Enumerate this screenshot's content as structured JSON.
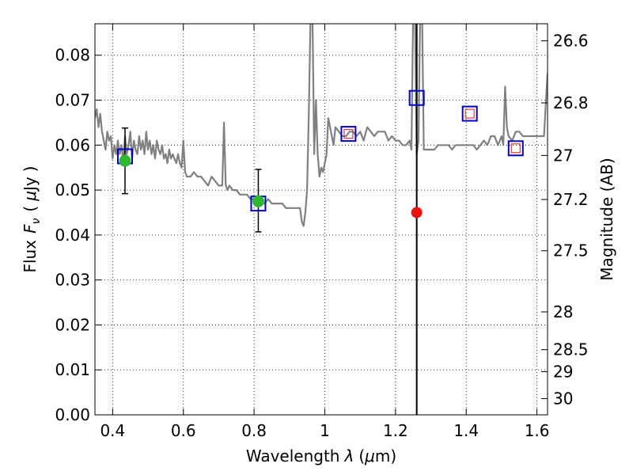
{
  "chart_data": {
    "type": "scatter",
    "xlabel": "Wavelength",
    "xlabel_symbol": "λ",
    "xlabel_unit_open": "(",
    "xlabel_unit_mu": "μ",
    "xlabel_unit_rest": "m)",
    "ylabel": "Flux",
    "ylabel_symbol": "F",
    "ylabel_subscript": "ν",
    "ylabel_unit_open": "(",
    "ylabel_unit_mu": "μ",
    "ylabel_unit_rest": "Jy",
    "ylabel_unit_close": ")",
    "y2label": "Magnitude (AB)",
    "xlim": [
      0.35,
      1.63
    ],
    "ylim": [
      0.0,
      0.087
    ],
    "grid": true,
    "xticks": [
      0.4,
      0.6,
      0.8,
      1.0,
      1.2,
      1.4,
      1.6
    ],
    "xtick_labels": [
      "0.4",
      "0.6",
      "0.8",
      "1",
      "1.2",
      "1.4",
      "1.6"
    ],
    "yticks": [
      0.0,
      0.01,
      0.02,
      0.03,
      0.04,
      0.05,
      0.06,
      0.07,
      0.08
    ],
    "ytick_labels": [
      "0.00",
      "0.01",
      "0.02",
      "0.03",
      "0.04",
      "0.05",
      "0.06",
      "0.07",
      "0.08"
    ],
    "y2ticks": [
      {
        "label": "26.6",
        "flux": 0.0832
      },
      {
        "label": "26.8",
        "flux": 0.0694
      },
      {
        "label": "27",
        "flux": 0.0577
      },
      {
        "label": "27.2",
        "flux": 0.0479
      },
      {
        "label": "27.5",
        "flux": 0.0365
      },
      {
        "label": "28",
        "flux": 0.0229
      },
      {
        "label": "28.5",
        "flux": 0.0145
      },
      {
        "label": "29",
        "flux": 0.0096
      },
      {
        "label": "30",
        "flux": 0.0036
      }
    ],
    "spectrum": {
      "color": "#808080",
      "x": [
        0.35,
        0.355,
        0.36,
        0.365,
        0.37,
        0.375,
        0.38,
        0.385,
        0.39,
        0.395,
        0.4,
        0.405,
        0.41,
        0.415,
        0.42,
        0.425,
        0.43,
        0.435,
        0.44,
        0.445,
        0.45,
        0.455,
        0.46,
        0.465,
        0.47,
        0.475,
        0.48,
        0.485,
        0.49,
        0.495,
        0.5,
        0.505,
        0.51,
        0.515,
        0.52,
        0.525,
        0.53,
        0.535,
        0.54,
        0.545,
        0.55,
        0.555,
        0.56,
        0.565,
        0.57,
        0.575,
        0.58,
        0.585,
        0.59,
        0.595,
        0.6,
        0.605,
        0.61,
        0.62,
        0.63,
        0.64,
        0.65,
        0.66,
        0.67,
        0.68,
        0.69,
        0.7,
        0.71,
        0.715,
        0.72,
        0.725,
        0.73,
        0.74,
        0.75,
        0.76,
        0.77,
        0.78,
        0.79,
        0.8,
        0.81,
        0.82,
        0.83,
        0.84,
        0.85,
        0.86,
        0.87,
        0.88,
        0.89,
        0.9,
        0.91,
        0.92,
        0.93,
        0.935,
        0.94,
        0.945,
        0.95,
        0.955,
        0.96,
        0.965,
        0.97,
        0.975,
        0.98,
        0.985,
        0.99,
        0.995,
        1.0,
        1.005,
        1.01,
        1.02,
        1.025,
        1.03,
        1.04,
        1.05,
        1.06,
        1.07,
        1.08,
        1.09,
        1.1,
        1.11,
        1.12,
        1.13,
        1.14,
        1.15,
        1.16,
        1.17,
        1.18,
        1.19,
        1.2,
        1.21,
        1.22,
        1.23,
        1.24,
        1.245,
        1.25,
        1.255,
        1.26,
        1.265,
        1.27,
        1.275,
        1.28,
        1.29,
        1.3,
        1.31,
        1.32,
        1.33,
        1.34,
        1.35,
        1.36,
        1.37,
        1.38,
        1.39,
        1.4,
        1.41,
        1.42,
        1.43,
        1.44,
        1.45,
        1.46,
        1.47,
        1.48,
        1.49,
        1.5,
        1.505,
        1.51,
        1.515,
        1.52,
        1.53,
        1.54,
        1.55,
        1.56,
        1.57,
        1.58,
        1.59,
        1.6,
        1.61,
        1.62,
        1.63
      ],
      "y": [
        0.066,
        0.068,
        0.064,
        0.067,
        0.063,
        0.061,
        0.059,
        0.063,
        0.061,
        0.062,
        0.057,
        0.06,
        0.058,
        0.061,
        0.058,
        0.06,
        0.056,
        0.062,
        0.058,
        0.06,
        0.063,
        0.057,
        0.061,
        0.059,
        0.058,
        0.062,
        0.059,
        0.061,
        0.058,
        0.063,
        0.059,
        0.061,
        0.058,
        0.06,
        0.057,
        0.061,
        0.059,
        0.058,
        0.06,
        0.057,
        0.058,
        0.056,
        0.059,
        0.057,
        0.058,
        0.057,
        0.056,
        0.058,
        0.056,
        0.055,
        0.061,
        0.054,
        0.053,
        0.053,
        0.054,
        0.053,
        0.053,
        0.052,
        0.051,
        0.053,
        0.052,
        0.051,
        0.051,
        0.065,
        0.051,
        0.05,
        0.051,
        0.05,
        0.05,
        0.049,
        0.049,
        0.049,
        0.048,
        0.048,
        0.048,
        0.047,
        0.047,
        0.048,
        0.047,
        0.047,
        0.047,
        0.047,
        0.046,
        0.046,
        0.046,
        0.046,
        0.046,
        0.043,
        0.042,
        0.045,
        0.05,
        0.068,
        0.09,
        0.09,
        0.058,
        0.07,
        0.058,
        0.053,
        0.055,
        0.054,
        0.056,
        0.058,
        0.066,
        0.062,
        0.06,
        0.064,
        0.063,
        0.062,
        0.062,
        0.063,
        0.063,
        0.062,
        0.063,
        0.061,
        0.064,
        0.063,
        0.062,
        0.063,
        0.063,
        0.063,
        0.061,
        0.062,
        0.061,
        0.061,
        0.06,
        0.06,
        0.061,
        0.059,
        0.09,
        0.09,
        0.058,
        0.061,
        0.09,
        0.09,
        0.059,
        0.059,
        0.059,
        0.059,
        0.06,
        0.06,
        0.06,
        0.06,
        0.059,
        0.06,
        0.06,
        0.06,
        0.06,
        0.06,
        0.06,
        0.059,
        0.06,
        0.061,
        0.06,
        0.062,
        0.062,
        0.06,
        0.062,
        0.06,
        0.073,
        0.064,
        0.062,
        0.061,
        0.063,
        0.063,
        0.062,
        0.062,
        0.062,
        0.062,
        0.062,
        0.062,
        0.062,
        0.076
      ]
    },
    "vline": {
      "x": 1.26,
      "color": "#000000"
    },
    "green_points": [
      {
        "x": 0.435,
        "y": 0.0565,
        "err_low": 0.0492,
        "err_high": 0.0638
      },
      {
        "x": 0.812,
        "y": 0.0475,
        "err_low": 0.0407,
        "err_high": 0.0546
      }
    ],
    "blue_squares": [
      {
        "x": 0.435,
        "y": 0.0575
      },
      {
        "x": 0.812,
        "y": 0.047
      },
      {
        "x": 1.067,
        "y": 0.0625
      },
      {
        "x": 1.26,
        "y": 0.0705
      },
      {
        "x": 1.41,
        "y": 0.067
      },
      {
        "x": 1.54,
        "y": 0.0593
      }
    ],
    "red_squares": [
      {
        "x": 1.067,
        "y": 0.0625
      },
      {
        "x": 1.41,
        "y": 0.067
      },
      {
        "x": 1.54,
        "y": 0.0593
      }
    ],
    "red_point": {
      "x": 1.26,
      "y": 0.045
    },
    "colors": {
      "green": "#2eb82e",
      "blue": "#0000cc",
      "red": "#ee1111",
      "grid": "#000000"
    }
  }
}
